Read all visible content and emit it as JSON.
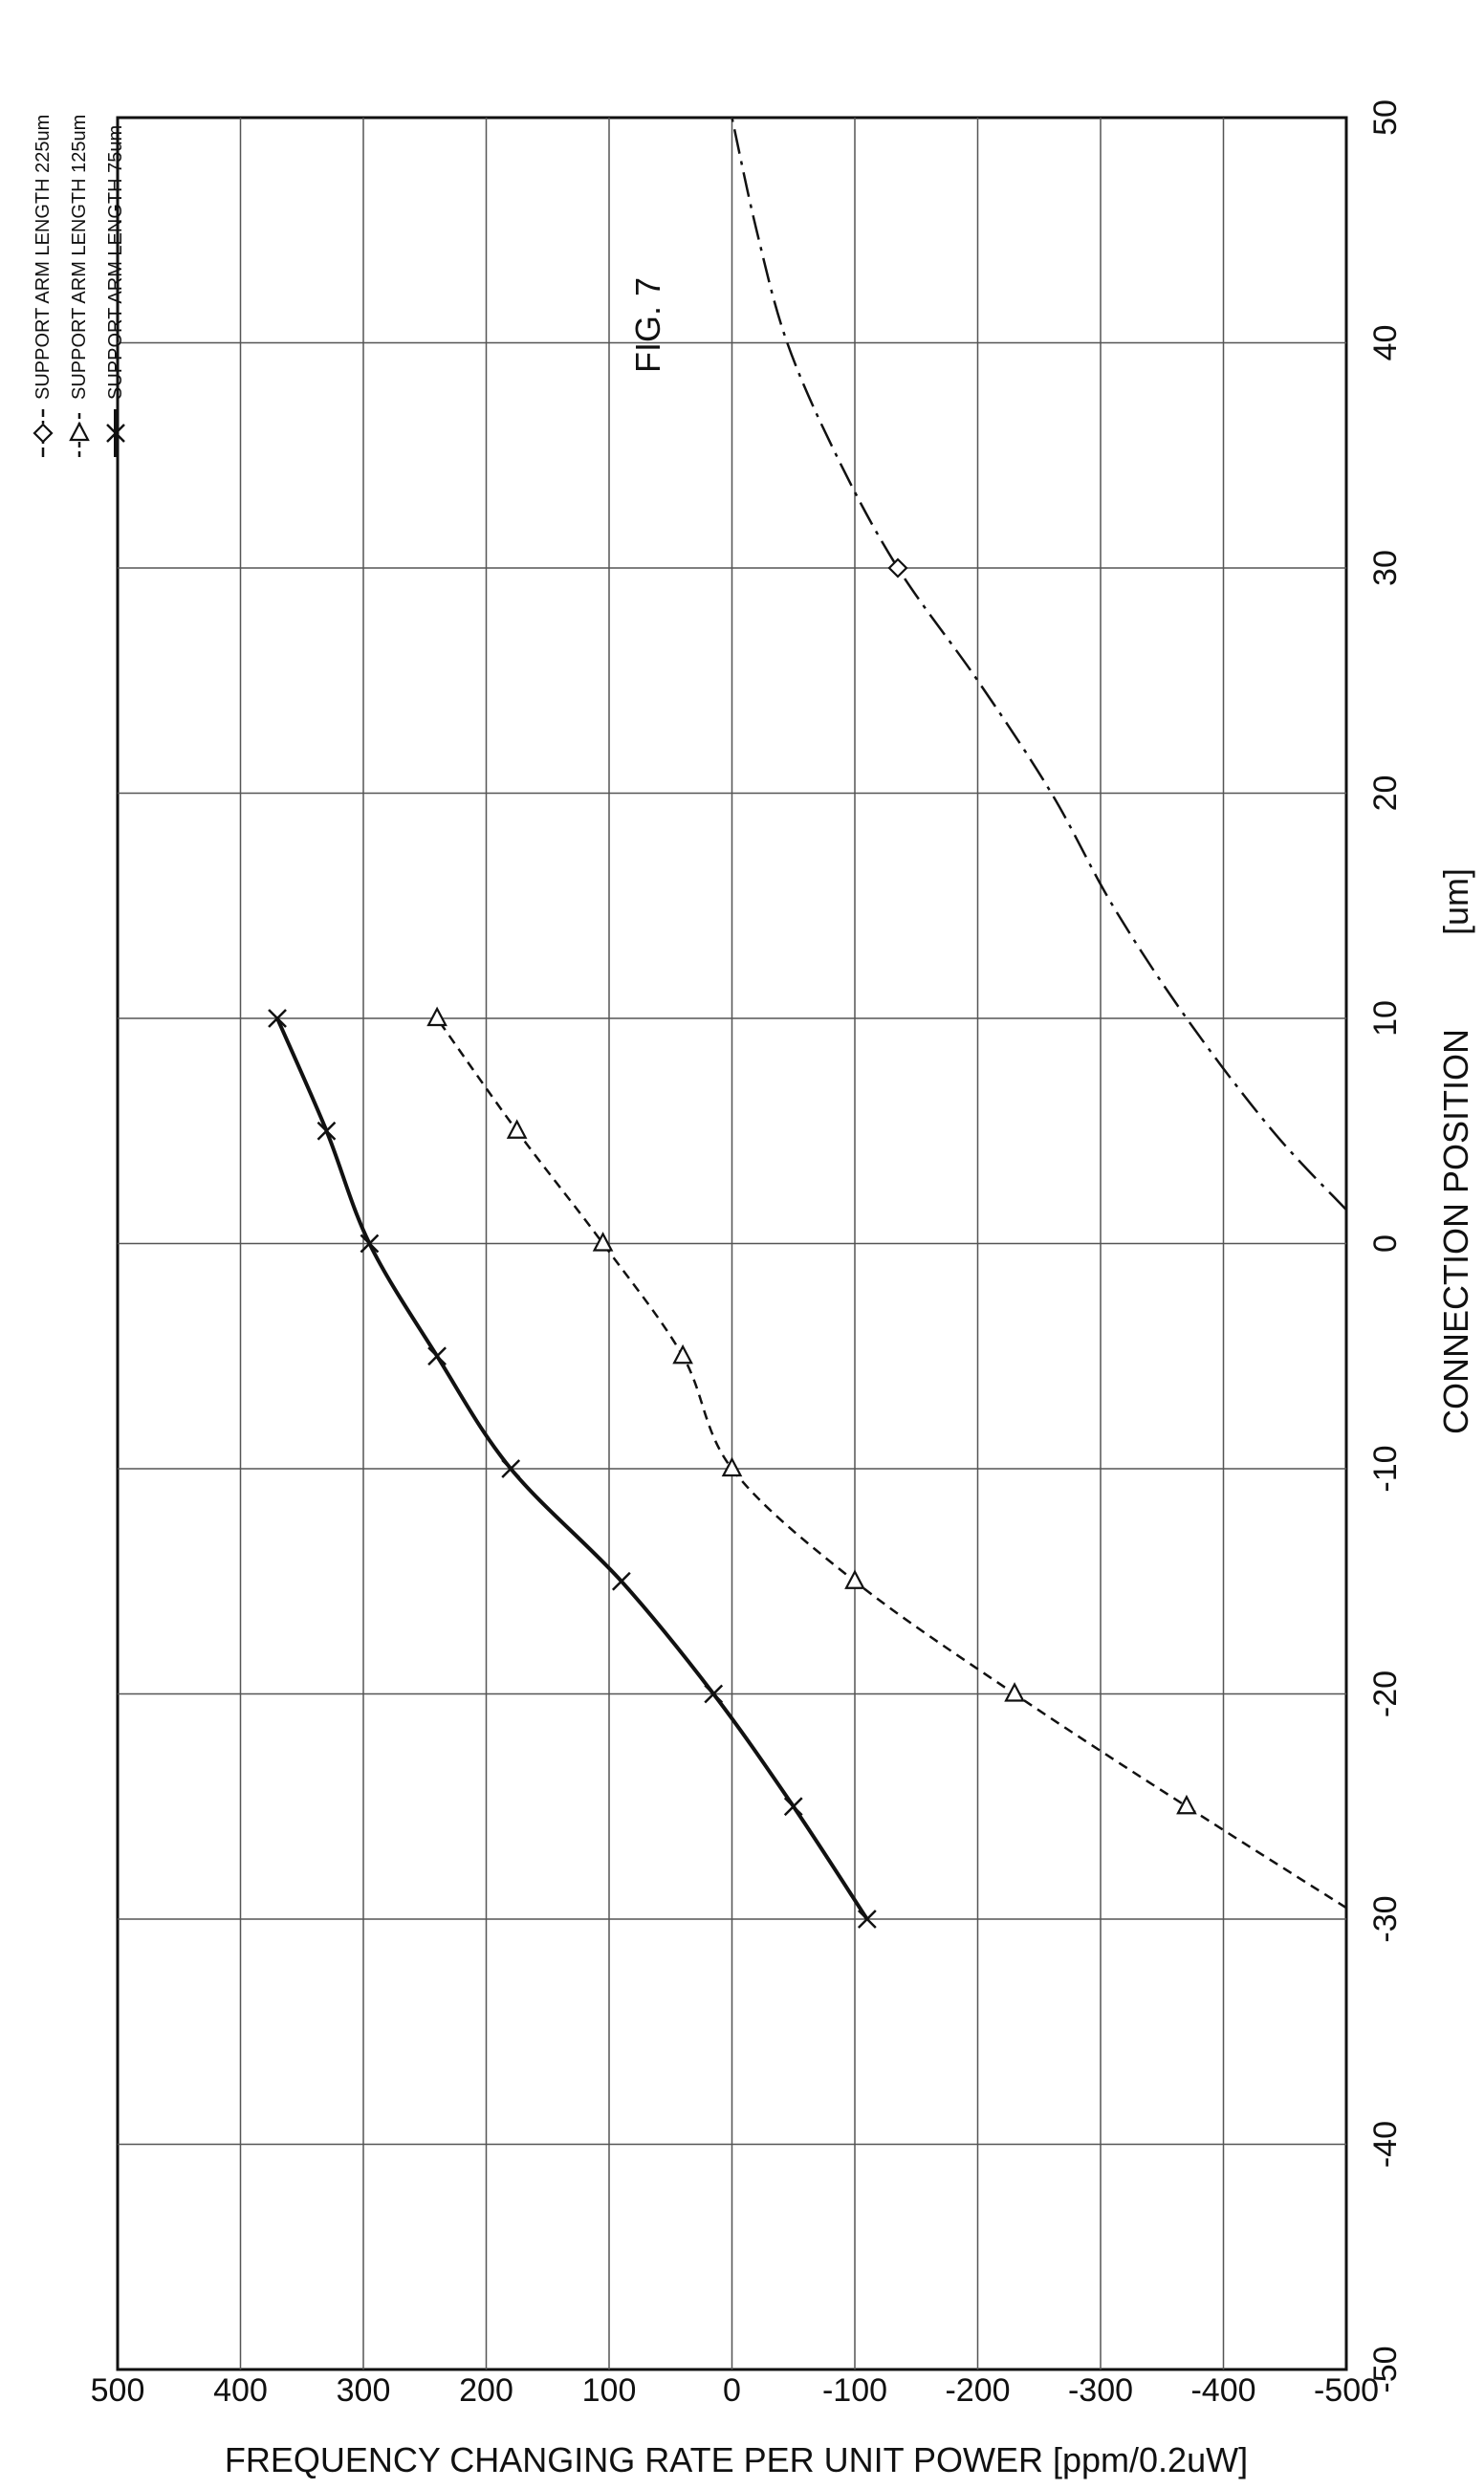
{
  "figure_label": "FIG. 7",
  "chart_data": {
    "type": "line",
    "title": "",
    "xlabel": "CONNECTION POSITION",
    "xunit": "[um]",
    "ylabel": "FREQUENCY CHANGING RATE PER UNIT POWER [ppm/0.2uW]",
    "xlim": [
      -50,
      50
    ],
    "ylim": [
      -500,
      500
    ],
    "x_ticks": [
      -50,
      -40,
      -30,
      -20,
      -10,
      0,
      10,
      20,
      30,
      40,
      50
    ],
    "y_ticks": [
      -500,
      -400,
      -300,
      -200,
      -100,
      0,
      100,
      200,
      300,
      400,
      500
    ],
    "x_tick_labels": [
      "-50",
      "-40",
      "-30",
      "-20",
      "-10",
      "0",
      "10",
      "20",
      "30",
      "40",
      "50"
    ],
    "y_tick_labels": [
      "-500",
      "-400",
      "-300",
      "-200",
      "-100",
      "0",
      "100",
      "200",
      "300",
      "400",
      "500"
    ],
    "grid": true,
    "legend_position": "top-right",
    "orientation": "rotated 90 degrees counter-clockwise",
    "series": [
      {
        "name": "SUPPORT ARM LENGTH 225um",
        "marker": "diamond",
        "line_style": "dash-dot",
        "color": "#111111",
        "markers_x": [
          30
        ],
        "markers_y": [
          -135
        ],
        "curve": [
          [
            1.5,
            -500
          ],
          [
            5,
            -440
          ],
          [
            10,
            -370
          ],
          [
            15,
            -310
          ],
          [
            20,
            -260
          ],
          [
            25,
            -200
          ],
          [
            30,
            -135
          ],
          [
            35,
            -85
          ],
          [
            40,
            -45
          ],
          [
            45,
            -20
          ],
          [
            50,
            0
          ]
        ]
      },
      {
        "name": "SUPPORT ARM LENGTH 125um",
        "marker": "triangle",
        "line_style": "dashed",
        "color": "#111111",
        "markers_x": [
          -25,
          -20,
          -15,
          -10,
          -5,
          0,
          5,
          10
        ],
        "markers_y": [
          -370,
          -230,
          -100,
          0,
          40,
          105,
          175,
          240
        ],
        "curve": [
          [
            -29.5,
            -500
          ],
          [
            -25,
            -370
          ],
          [
            -20,
            -230
          ],
          [
            -15,
            -100
          ],
          [
            -10,
            0
          ],
          [
            -5,
            40
          ],
          [
            0,
            105
          ],
          [
            5,
            175
          ],
          [
            10,
            240
          ]
        ]
      },
      {
        "name": "SUPPORT ARM LENGTH 75um",
        "marker": "asterisk",
        "line_style": "solid",
        "color": "#111111",
        "markers_x": [
          -30,
          -25,
          -20,
          -15,
          -10,
          -5,
          0,
          5,
          10
        ],
        "markers_y": [
          -110,
          -50,
          15,
          90,
          180,
          240,
          295,
          330,
          370
        ],
        "curve": [
          [
            -30,
            -110
          ],
          [
            -25,
            -50
          ],
          [
            -20,
            15
          ],
          [
            -15,
            90
          ],
          [
            -10,
            180
          ],
          [
            -5,
            240
          ],
          [
            0,
            295
          ],
          [
            5,
            330
          ],
          [
            10,
            370
          ]
        ]
      }
    ]
  }
}
